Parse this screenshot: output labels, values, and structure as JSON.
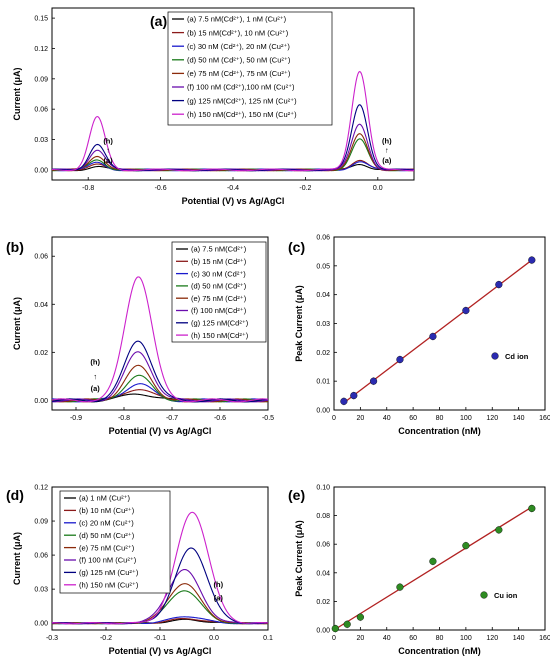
{
  "chart_data": [
    {
      "panel": "(a)",
      "type": "line",
      "xlabel": "Potential (V) vs Ag/AgCl",
      "ylabel": "Current (μA)",
      "xlim": [
        -0.9,
        0.1
      ],
      "ylim": [
        -0.01,
        0.16
      ],
      "xticks": [
        "-0.8",
        "-0.6",
        "-0.4",
        "-0.2",
        "0.0"
      ],
      "yticks": [
        "0.00",
        "0.03",
        "0.06",
        "0.09",
        "0.12",
        "0.15"
      ],
      "legend_position": "top-center",
      "peak_potentials": [
        -0.775,
        -0.05
      ],
      "series": [
        {
          "name": "(a) 7.5 nM(Cd²⁺), 1 nM    (Cu²⁺)",
          "color": "#000000",
          "cd_peak": 0.003,
          "cu_peak": 0.006
        },
        {
          "name": "(b) 15 nM(Cd²⁺), 10 nM   (Cu²⁺)",
          "color": "#8b1a1a",
          "cd_peak": 0.005,
          "cu_peak": 0.01
        },
        {
          "name": "(c) 30 nM (Cd²⁺), 20 nM  (Cu²⁺)",
          "color": "#1a1acd",
          "cd_peak": 0.007,
          "cu_peak": 0.008
        },
        {
          "name": "(d) 50 nM (Cd²⁺), 50 nM  (Cu²⁺)",
          "color": "#1a7a1a",
          "cd_peak": 0.01,
          "cu_peak": 0.03
        },
        {
          "name": "(e) 75 nM (Cd²⁺), 75 nM  (Cu²⁺)",
          "color": "#8b2a0a",
          "cd_peak": 0.014,
          "cu_peak": 0.035
        },
        {
          "name": "(f) 100 nM (Cd²⁺),100 nM (Cu²⁺)",
          "color": "#6a0dad",
          "cd_peak": 0.02,
          "cu_peak": 0.045
        },
        {
          "name": "(g) 125 nM(Cd²⁺), 125 nM (Cu²⁺)",
          "color": "#000080",
          "cd_peak": 0.025,
          "cu_peak": 0.065
        },
        {
          "name": "(h) 150 nM(Cd²⁺), 150 nM (Cu²⁺)",
          "color": "#cc22cc",
          "cd_peak": 0.052,
          "cu_peak": 0.098
        }
      ],
      "annotations": [
        {
          "text": "(h)",
          "x": -0.745,
          "y": 0.026
        },
        {
          "text": "↑",
          "x": -0.745,
          "y": 0.017
        },
        {
          "text": "(a)",
          "x": -0.745,
          "y": 0.007
        },
        {
          "text": "(h)",
          "x": 0.025,
          "y": 0.026
        },
        {
          "text": "↑",
          "x": 0.025,
          "y": 0.017
        },
        {
          "text": "(a)",
          "x": 0.025,
          "y": 0.007
        }
      ]
    },
    {
      "panel": "(b)",
      "type": "line",
      "xlabel": "Potential (V) vs Ag/AgCl",
      "ylabel": "Current (μA)",
      "xlim": [
        -0.95,
        -0.5
      ],
      "ylim": [
        -0.004,
        0.068
      ],
      "xticks": [
        "-0.9",
        "-0.8",
        "-0.7",
        "-0.6",
        "-0.5"
      ],
      "yticks": [
        "0.00",
        "0.02",
        "0.04",
        "0.06"
      ],
      "legend_position": "top-right",
      "peak_potential": -0.77,
      "series": [
        {
          "name": "(a) 7.5 nM(Cd²⁺)",
          "color": "#000000",
          "peak": 0.003
        },
        {
          "name": "(b) 15 nM (Cd²⁺)",
          "color": "#8b1a1a",
          "peak": 0.005
        },
        {
          "name": "(c) 30 nM (Cd²⁺)",
          "color": "#1a1acd",
          "peak": 0.007
        },
        {
          "name": "(d) 50 nM (Cd²⁺)",
          "color": "#1a7a1a",
          "peak": 0.01
        },
        {
          "name": "(e) 75 nM (Cd²⁺)",
          "color": "#8b2a0a",
          "peak": 0.014
        },
        {
          "name": "(f) 100 nM(Cd²⁺)",
          "color": "#6a0dad",
          "peak": 0.02
        },
        {
          "name": "(g) 125 nM(Cd²⁺)",
          "color": "#000080",
          "peak": 0.025
        },
        {
          "name": "(h) 150 nM(Cd²⁺)",
          "color": "#cc22cc",
          "peak": 0.052
        }
      ],
      "annotations": [
        {
          "text": "(h)",
          "x": -0.86,
          "y": 0.015
        },
        {
          "text": "↑",
          "x": -0.86,
          "y": 0.009
        },
        {
          "text": "(a)",
          "x": -0.86,
          "y": 0.004
        }
      ]
    },
    {
      "panel": "(c)",
      "type": "scatter",
      "xlabel": "Concentration (nM)",
      "ylabel": "Peak  Current (μA)",
      "xlim": [
        0,
        160
      ],
      "ylim": [
        0,
        0.06
      ],
      "xticks": [
        "0",
        "20",
        "40",
        "60",
        "80",
        "100",
        "120",
        "140",
        "160"
      ],
      "yticks": [
        "0.00",
        "0.01",
        "0.02",
        "0.03",
        "0.04",
        "0.05",
        "0.06"
      ],
      "legend": "Cd ion",
      "marker_color": "#2b2bb0",
      "fit_color": "#b22222",
      "x": [
        7.5,
        15,
        30,
        50,
        75,
        100,
        125,
        150
      ],
      "y": [
        0.003,
        0.005,
        0.01,
        0.0175,
        0.0255,
        0.0345,
        0.0435,
        0.052
      ],
      "fit_line": {
        "x": [
          7.5,
          150
        ],
        "y": [
          0.0025,
          0.052
        ]
      }
    },
    {
      "panel": "(d)",
      "type": "line",
      "xlabel": "Potential (V) vs Ag/AgCl",
      "ylabel": "Current (μA)",
      "xlim": [
        -0.3,
        0.1
      ],
      "ylim": [
        -0.006,
        0.12
      ],
      "xticks": [
        "-0.3",
        "-0.2",
        "-0.1",
        "0.0",
        "0.1"
      ],
      "yticks": [
        "0.00",
        "0.03",
        "0.06",
        "0.09",
        "0.12"
      ],
      "legend_position": "top-left",
      "series": [
        {
          "name": "(a) 1 nM      (Cu²⁺)",
          "color": "#000000",
          "peak": 0.003,
          "at": -0.05
        },
        {
          "name": "(b) 10 nM     (Cu²⁺)",
          "color": "#8b1a1a",
          "peak": 0.004,
          "at": -0.05
        },
        {
          "name": "(c) 20 nM     (Cu²⁺)",
          "color": "#1a1acd",
          "peak": 0.006,
          "at": -0.05
        },
        {
          "name": "(d) 50 nM     (Cu²⁺)",
          "color": "#1a7a1a",
          "peak": 0.029,
          "at": -0.055
        },
        {
          "name": "(e) 75 nM     (Cu²⁺)",
          "color": "#8b2a0a",
          "peak": 0.035,
          "at": -0.055
        },
        {
          "name": "(f) 100 nM    (Cu²⁺)",
          "color": "#6a0dad",
          "peak": 0.047,
          "at": -0.055
        },
        {
          "name": "(g) 125 nM    (Cu²⁺)",
          "color": "#000080",
          "peak": 0.066,
          "at": -0.042
        },
        {
          "name": "(h) 150 nM    (Cu²⁺)",
          "color": "#cc22cc",
          "peak": 0.098,
          "at": -0.04
        }
      ],
      "annotations": [
        {
          "text": "(h)",
          "x": 0.008,
          "y": 0.032
        },
        {
          "text": "(a)",
          "x": 0.008,
          "y": 0.02
        }
      ]
    },
    {
      "panel": "(e)",
      "type": "scatter",
      "xlabel": "Concentration (nM)",
      "ylabel": "Peak   Current (μA)",
      "xlim": [
        0,
        160
      ],
      "ylim": [
        0,
        0.1
      ],
      "xticks": [
        "0",
        "20",
        "40",
        "60",
        "80",
        "100",
        "120",
        "140",
        "160"
      ],
      "yticks": [
        "0.00",
        "0.02",
        "0.04",
        "0.06",
        "0.08",
        "0.10"
      ],
      "legend": "Cu ion",
      "marker_color": "#2e8b22",
      "fit_color": "#b22222",
      "x": [
        1,
        10,
        20,
        50,
        75,
        100,
        125,
        150
      ],
      "y": [
        0.001,
        0.004,
        0.009,
        0.03,
        0.048,
        0.059,
        0.07,
        0.085
      ],
      "fit_line": {
        "x": [
          0,
          150
        ],
        "y": [
          0.0,
          0.086
        ]
      }
    }
  ]
}
